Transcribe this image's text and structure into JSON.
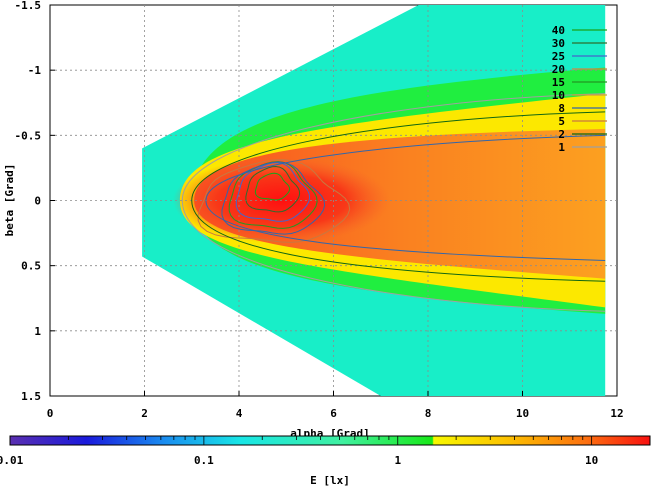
{
  "chart_data": {
    "type": "heatmap",
    "title": "",
    "xlabel": "alpha [Grad]",
    "ylabel": "beta [Grad]",
    "colorbar_label": "E [lx]",
    "xlim": [
      0,
      12
    ],
    "ylim": [
      -1.5,
      1.5
    ],
    "y_reversed": true,
    "grid": true,
    "x_ticks": [
      "0",
      "2",
      "4",
      "6",
      "8",
      "10",
      "12"
    ],
    "x_tick_values": [
      0,
      2,
      4,
      6,
      8,
      10,
      12
    ],
    "y_ticks": [
      "-1.5",
      "-1",
      "-0.5",
      "0",
      "0.5",
      "1",
      "1.5"
    ],
    "y_tick_values": [
      -1.5,
      -1,
      -0.5,
      0,
      0.5,
      1,
      1.5
    ],
    "colorbar_ticks": [
      "0.01",
      "0.1",
      "1",
      "10"
    ],
    "colorbar_tick_values": [
      0.01,
      0.1,
      1,
      10
    ],
    "colorbar_range": [
      0.01,
      20
    ],
    "colorbar_scale": "log",
    "legend_position": "top-right",
    "contour_levels": [
      {
        "label": "40",
        "color": "#1aa31a"
      },
      {
        "label": "30",
        "color": "#2d6e2d"
      },
      {
        "label": "25",
        "color": "#4466cc"
      },
      {
        "label": "20",
        "color": "#cc8844"
      },
      {
        "label": "15",
        "color": "#229922"
      },
      {
        "label": "10",
        "color": "#c8a040"
      },
      {
        "label": "8",
        "color": "#3366aa"
      },
      {
        "label": "5",
        "color": "#c87840"
      },
      {
        "label": "2",
        "color": "#116611"
      },
      {
        "label": "1",
        "color": "#a0a0a0"
      }
    ],
    "field_peak": {
      "alpha": 4.7,
      "beta": -0.1,
      "value": 18
    },
    "coverage_region": {
      "alpha_min": 1.95,
      "alpha_max": 11.75
    }
  }
}
